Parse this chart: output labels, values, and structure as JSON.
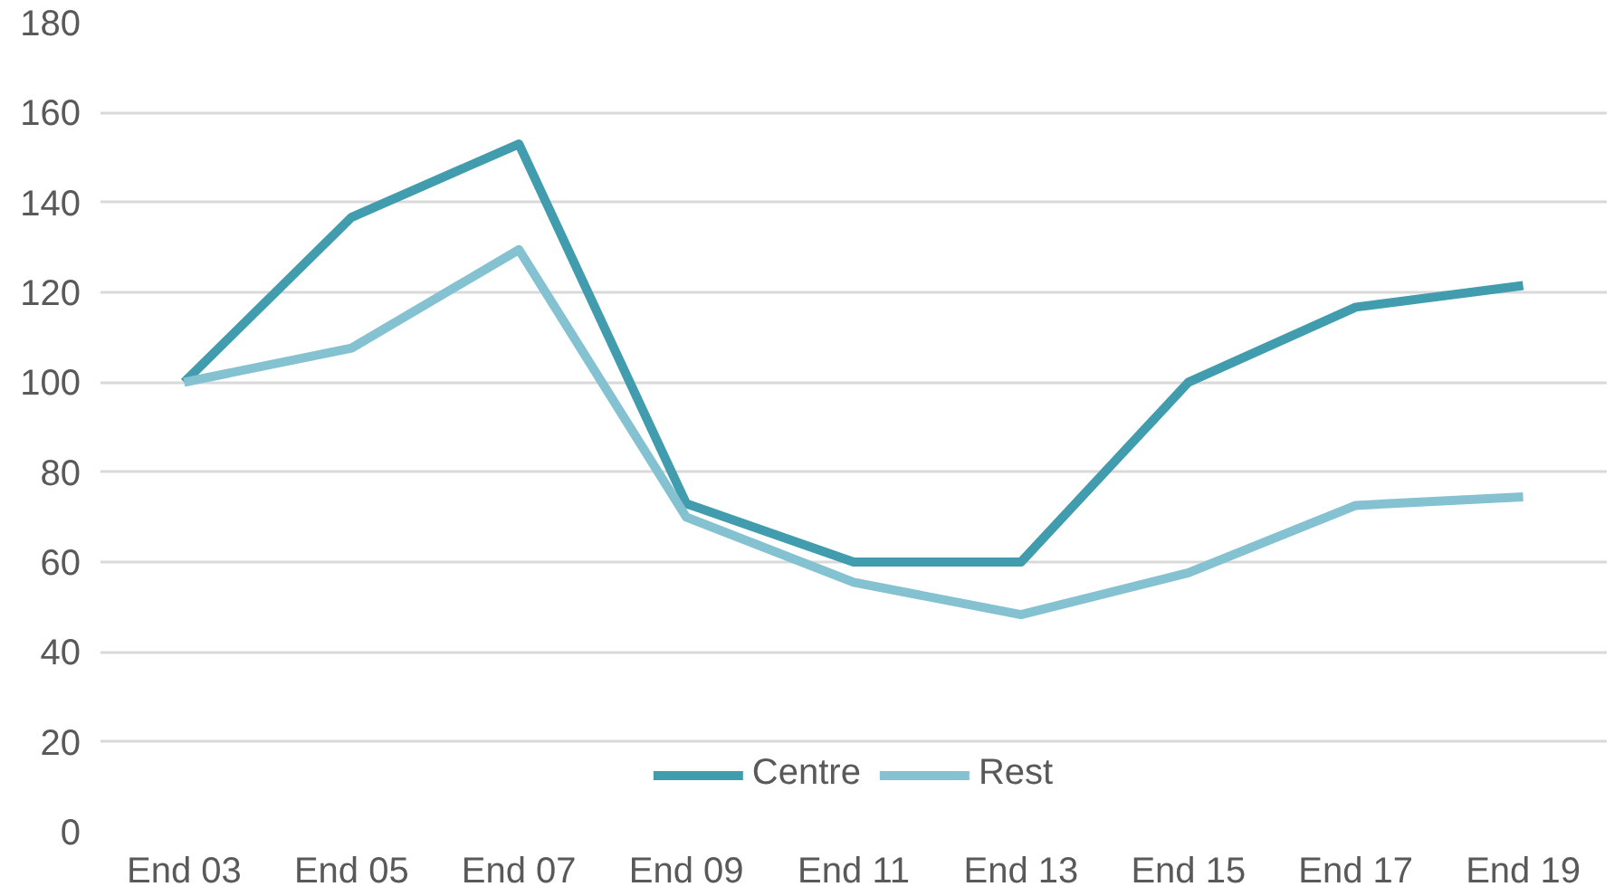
{
  "chart_data": {
    "type": "line",
    "categories": [
      "End 03",
      "End 05",
      "End 07",
      "End 09",
      "End 11",
      "End 13",
      "End 15",
      "End 17",
      "End 19"
    ],
    "series": [
      {
        "name": "Centre",
        "color": "#419dae",
        "values": [
          100,
          136.7,
          153,
          73,
          60,
          60,
          100,
          116.7,
          121.5
        ]
      },
      {
        "name": "Rest",
        "color": "#84c2d1",
        "values": [
          100,
          107.6,
          129.5,
          70,
          55.5,
          48.3,
          57.6,
          72.6,
          74.5
        ]
      }
    ],
    "ylim": [
      0,
      180
    ],
    "yticks": [
      0,
      20,
      40,
      60,
      80,
      100,
      120,
      140,
      160,
      180
    ],
    "grid": "y",
    "legend": "bottom",
    "marker": "none",
    "line_style": "solid"
  }
}
